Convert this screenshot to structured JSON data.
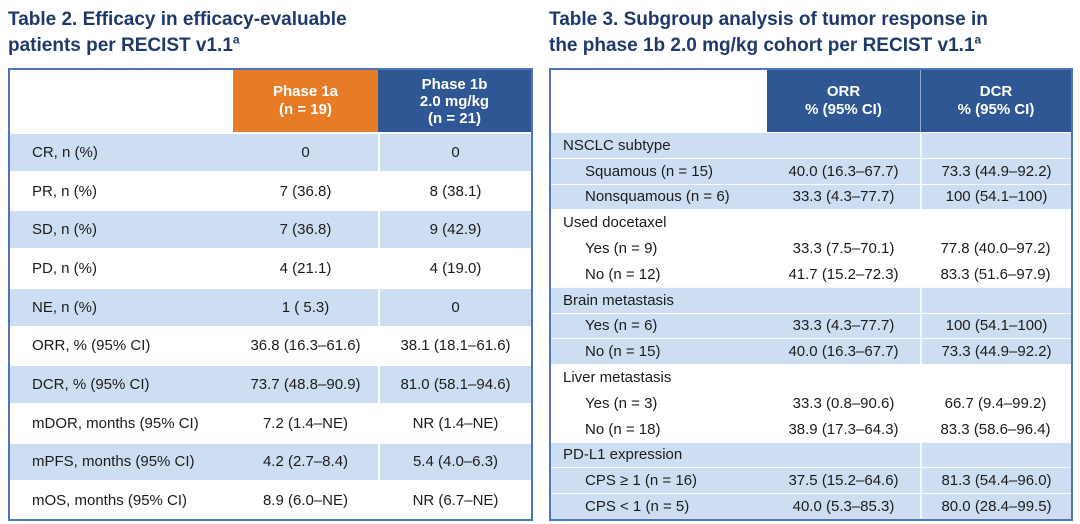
{
  "colors": {
    "title_navy": "#1e3a6b",
    "header_orange": "#e87b25",
    "header_blue": "#2e5794",
    "shaded_row_blue": "#cedef2",
    "table_border_blue": "#4d75bb"
  },
  "table2": {
    "title": {
      "line1": "Table 2. Efficacy in efficacy-evaluable",
      "line2": "patients per RECIST v1.1",
      "sup": "a"
    },
    "header": {
      "col_phase1a": {
        "line1": "Phase 1a",
        "line2": "(n = 19)"
      },
      "col_phase1b": {
        "line1": "Phase 1b",
        "line2": "2.0 mg/kg",
        "line3": "(n = 21)"
      }
    },
    "rows": [
      {
        "label": "CR, n (%)",
        "phase1a": "0",
        "phase1b": "0"
      },
      {
        "label": "PR, n (%)",
        "phase1a": "7 (36.8)",
        "phase1b": "8 (38.1)"
      },
      {
        "label": "SD, n (%)",
        "phase1a": "7 (36.8)",
        "phase1b": "9 (42.9)"
      },
      {
        "label": "PD, n (%)",
        "phase1a": "4 (21.1)",
        "phase1b": "4 (19.0)"
      },
      {
        "label": "NE, n (%)",
        "phase1a": "1 ( 5.3)",
        "phase1b": "0"
      },
      {
        "label": "ORR, % (95% CI)",
        "phase1a": "36.8 (16.3–61.6)",
        "phase1b": "38.1 (18.1–61.6)"
      },
      {
        "label": "DCR, % (95% CI)",
        "phase1a": "73.7 (48.8–90.9)",
        "phase1b": "81.0 (58.1–94.6)"
      },
      {
        "label": "mDOR, months (95% CI)",
        "phase1a": "7.2 (1.4–NE)",
        "phase1b": "NR (1.4–NE)"
      },
      {
        "label": "mPFS, months (95% CI)",
        "phase1a": "4.2 (2.7–8.4)",
        "phase1b": "5.4 (4.0–6.3)"
      },
      {
        "label": "mOS, months (95% CI)",
        "phase1a": "8.9 (6.0–NE)",
        "phase1b": "NR (6.7–NE)"
      }
    ]
  },
  "table3": {
    "title": {
      "line1": "Table 3. Subgroup analysis of tumor response in",
      "line2": "the phase 1b 2.0 mg/kg cohort per RECIST v1.1",
      "sup": "a"
    },
    "header": {
      "col_orr": {
        "line1": "ORR",
        "line2": "% (95% CI)"
      },
      "col_dcr": {
        "line1": "DCR",
        "line2": "% (95% CI)"
      }
    },
    "groups": [
      {
        "header": "NSCLC subtype",
        "rows": [
          {
            "label": "Squamous (n = 15)",
            "orr": "40.0 (16.3–67.7)",
            "dcr": "73.3 (44.9–92.2)"
          },
          {
            "label": "Nonsquamous (n = 6)",
            "orr": "33.3 (4.3–77.7)",
            "dcr": "100 (54.1–100)"
          }
        ]
      },
      {
        "header": "Used docetaxel",
        "rows": [
          {
            "label": "Yes (n = 9)",
            "orr": "33.3 (7.5–70.1)",
            "dcr": "77.8 (40.0–97.2)"
          },
          {
            "label": "No (n = 12)",
            "orr": "41.7 (15.2–72.3)",
            "dcr": "83.3 (51.6–97.9)"
          }
        ]
      },
      {
        "header": "Brain metastasis",
        "rows": [
          {
            "label": "Yes (n = 6)",
            "orr": "33.3 (4.3–77.7)",
            "dcr": "100 (54.1–100)"
          },
          {
            "label": "No (n = 15)",
            "orr": "40.0 (16.3–67.7)",
            "dcr": "73.3 (44.9–92.2)"
          }
        ]
      },
      {
        "header": "Liver metastasis",
        "rows": [
          {
            "label": "Yes (n = 3)",
            "orr": "33.3 (0.8–90.6)",
            "dcr": "66.7 (9.4–99.2)"
          },
          {
            "label": "No (n = 18)",
            "orr": "38.9 (17.3–64.3)",
            "dcr": "83.3 (58.6–96.4)"
          }
        ]
      },
      {
        "header": "PD-L1 expression",
        "rows": [
          {
            "label": "CPS ≥ 1 (n = 16)",
            "orr": "37.5 (15.2–64.6)",
            "dcr": "81.3 (54.4–96.0)"
          },
          {
            "label": "CPS < 1 (n = 5)",
            "orr": "40.0 (5.3–85.3)",
            "dcr": "80.0 (28.4–99.5)"
          }
        ]
      }
    ]
  }
}
